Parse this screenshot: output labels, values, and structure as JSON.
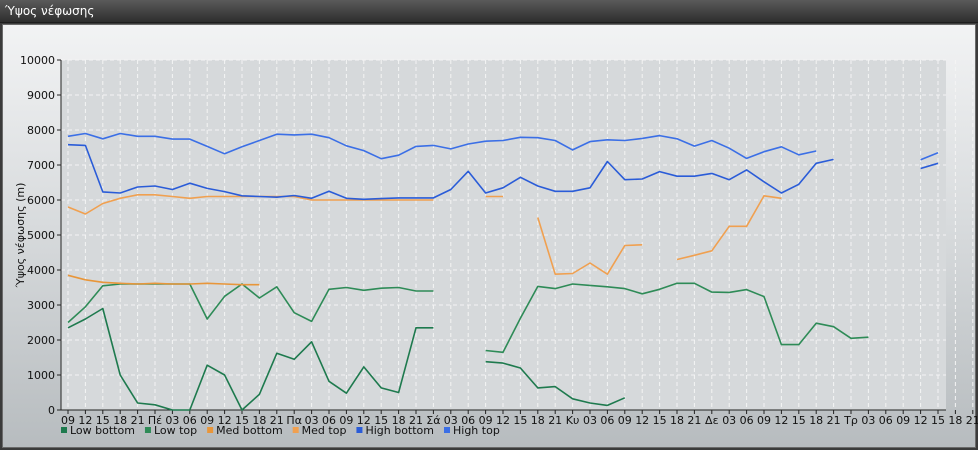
{
  "window": {
    "title": "Ύψος νέφωσης"
  },
  "chart_data": {
    "type": "line",
    "ylabel": "Ύψος νέφωσης (m)",
    "ylim": [
      0,
      10000
    ],
    "yticks": [
      0,
      1000,
      2000,
      3000,
      4000,
      5000,
      6000,
      7000,
      8000,
      9000,
      10000
    ],
    "grid": true,
    "legend_position": "bottom-left",
    "x_tick_labels": [
      "09",
      "12",
      "15",
      "18",
      "21",
      "Πέ",
      "03",
      "06",
      "09",
      "12",
      "15",
      "18",
      "21",
      "Πα",
      "03",
      "06",
      "09",
      "12",
      "15",
      "18",
      "21",
      "Σά",
      "03",
      "06",
      "09",
      "12",
      "15",
      "18",
      "21",
      "Κυ",
      "03",
      "06",
      "09",
      "12",
      "15",
      "18",
      "21",
      "Δε",
      "03",
      "06",
      "09",
      "12",
      "15",
      "18",
      "21",
      "Τρ",
      "03",
      "06",
      "09",
      "12",
      "15",
      "18",
      "21"
    ],
    "series": [
      {
        "name": "Low bottom",
        "color": "#1e7a4e",
        "values": [
          2350,
          2600,
          2900,
          1000,
          200,
          150,
          0,
          0,
          1280,
          1000,
          0,
          450,
          1620,
          1450,
          1950,
          820,
          480,
          1230,
          630,
          500,
          2350,
          2350,
          null,
          null,
          1380,
          1340,
          1200,
          630,
          670,
          320,
          200,
          130,
          350,
          null,
          null,
          null,
          null,
          null,
          null,
          null,
          null,
          null,
          null,
          null,
          null,
          null,
          null,
          null,
          null,
          null,
          null,
          null,
          null
        ]
      },
      {
        "name": "Low top",
        "color": "#2e8b57",
        "values": [
          2500,
          2950,
          3550,
          3600,
          3600,
          3600,
          3600,
          3600,
          2600,
          3250,
          3600,
          3200,
          3520,
          2780,
          2530,
          3450,
          3500,
          3420,
          3480,
          3500,
          3400,
          3400,
          null,
          null,
          1700,
          1650,
          2620,
          3530,
          3470,
          3600,
          3560,
          3520,
          3470,
          3320,
          3450,
          3620,
          3620,
          3370,
          3360,
          3440,
          3240,
          1870,
          1870,
          2480,
          2380,
          2050,
          2080,
          null,
          null,
          null,
          null,
          null,
          null
        ]
      },
      {
        "name": "Med bottom",
        "color": "#e8963a",
        "values": [
          3850,
          3720,
          3650,
          3620,
          3600,
          3620,
          3600,
          3600,
          3620,
          3600,
          3580,
          3580,
          null,
          null,
          null,
          null,
          null,
          null,
          null,
          null,
          null,
          null,
          null,
          null,
          null,
          null,
          null,
          null,
          null,
          null,
          null,
          null,
          null,
          null,
          null,
          null,
          null,
          null,
          null,
          null,
          null,
          null,
          null,
          null,
          null,
          null,
          null,
          null,
          null,
          null,
          null,
          null,
          null
        ]
      },
      {
        "name": "Med top",
        "color": "#f0a050",
        "values": [
          5800,
          5600,
          5900,
          6050,
          6150,
          6150,
          6100,
          6050,
          6100,
          6100,
          6100,
          6100,
          6100,
          6100,
          6000,
          6000,
          6000,
          6000,
          6000,
          6000,
          6000,
          6000,
          null,
          null,
          6100,
          6100,
          null,
          5500,
          3880,
          3900,
          4200,
          3880,
          4700,
          4720,
          null,
          4300,
          4420,
          4550,
          5250,
          5250,
          6120,
          6050,
          null,
          null,
          null,
          null,
          null,
          null,
          null,
          null,
          null,
          null,
          null
        ]
      },
      {
        "name": "High bottom",
        "color": "#2a5cd8",
        "values": [
          7580,
          7560,
          6230,
          6200,
          6370,
          6400,
          6300,
          6480,
          6330,
          6240,
          6120,
          6100,
          6080,
          6130,
          6050,
          6250,
          6050,
          6020,
          6040,
          6060,
          6060,
          6060,
          6300,
          6820,
          6200,
          6350,
          6650,
          6400,
          6250,
          6250,
          6350,
          7100,
          6580,
          6600,
          6810,
          6680,
          6680,
          6760,
          6580,
          6860,
          6520,
          6200,
          6450,
          7050,
          7160,
          null,
          null,
          null,
          null,
          6900,
          7050,
          null,
          null
        ]
      },
      {
        "name": "High top",
        "color": "#3b6fe6",
        "values": [
          7820,
          7900,
          7750,
          7900,
          7820,
          7820,
          7740,
          7740,
          7530,
          7320,
          7520,
          7700,
          7880,
          7860,
          7880,
          7780,
          7550,
          7410,
          7180,
          7280,
          7530,
          7560,
          7460,
          7600,
          7680,
          7700,
          7790,
          7780,
          7700,
          7430,
          7670,
          7720,
          7700,
          7760,
          7840,
          7750,
          7540,
          7700,
          7480,
          7190,
          7380,
          7520,
          7290,
          7400,
          null,
          null,
          null,
          null,
          null,
          7150,
          7350,
          null,
          null
        ]
      }
    ]
  }
}
